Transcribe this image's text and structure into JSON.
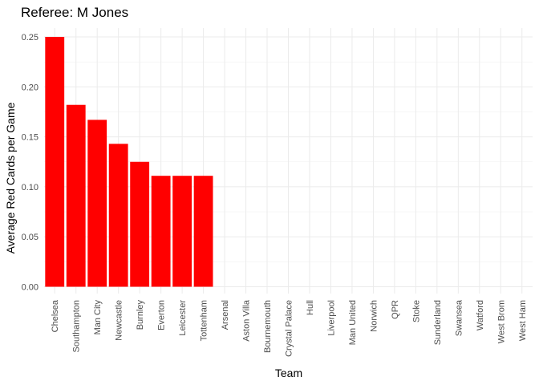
{
  "chart_data": {
    "type": "bar",
    "title": "Referee: M Jones",
    "xlabel": "Team",
    "ylabel": "Average Red Cards per Game",
    "categories": [
      "Chelsea",
      "Southampton",
      "Man City",
      "Newcastle",
      "Burnley",
      "Everton",
      "Leicester",
      "Tottenham",
      "Arsenal",
      "Aston Villa",
      "Bournemouth",
      "Crystal Palace",
      "Hull",
      "Liverpool",
      "Man United",
      "Norwich",
      "QPR",
      "Stoke",
      "Sunderland",
      "Swansea",
      "Watford",
      "West Brom",
      "West Ham"
    ],
    "values": [
      0.25,
      0.182,
      0.167,
      0.143,
      0.125,
      0.111,
      0.111,
      0.111,
      0,
      0,
      0,
      0,
      0,
      0,
      0,
      0,
      0,
      0,
      0,
      0,
      0,
      0,
      0
    ],
    "ylim": [
      0,
      0.25
    ],
    "yticks": [
      "0.00",
      "0.05",
      "0.10",
      "0.15",
      "0.20",
      "0.25"
    ],
    "bar_color": "#ff0000",
    "grid": true,
    "legend": "none"
  }
}
